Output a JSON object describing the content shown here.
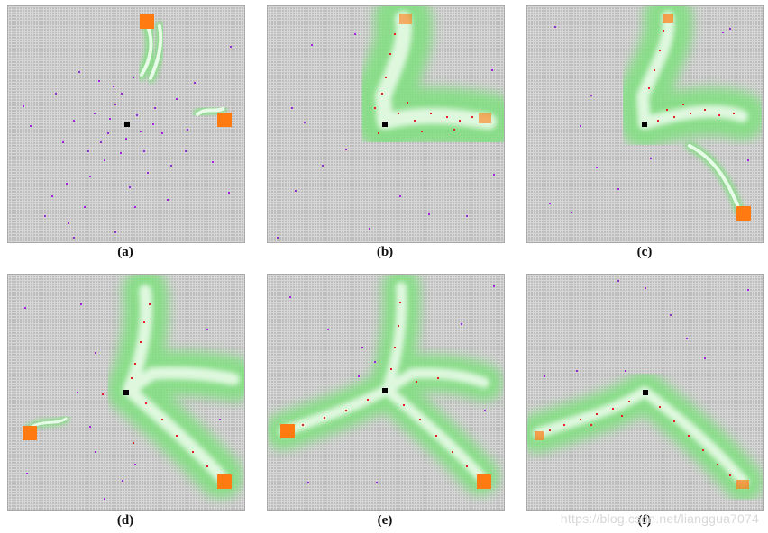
{
  "captions": {
    "a": "(a)",
    "b": "(b)",
    "c": "(c)",
    "d": "(d)",
    "e": "(e)",
    "f": "(f)"
  },
  "watermark": "https://blog.csdn.net/lianggua7074",
  "colors": {
    "grid_bg": "#bdbdbd",
    "tree_halo": "#7fe07f",
    "tree_core": "#e8fbe8",
    "nodes": "#e52020",
    "samples": "#9b27d8",
    "start": "#000000",
    "goal": "#ff7a10"
  }
}
